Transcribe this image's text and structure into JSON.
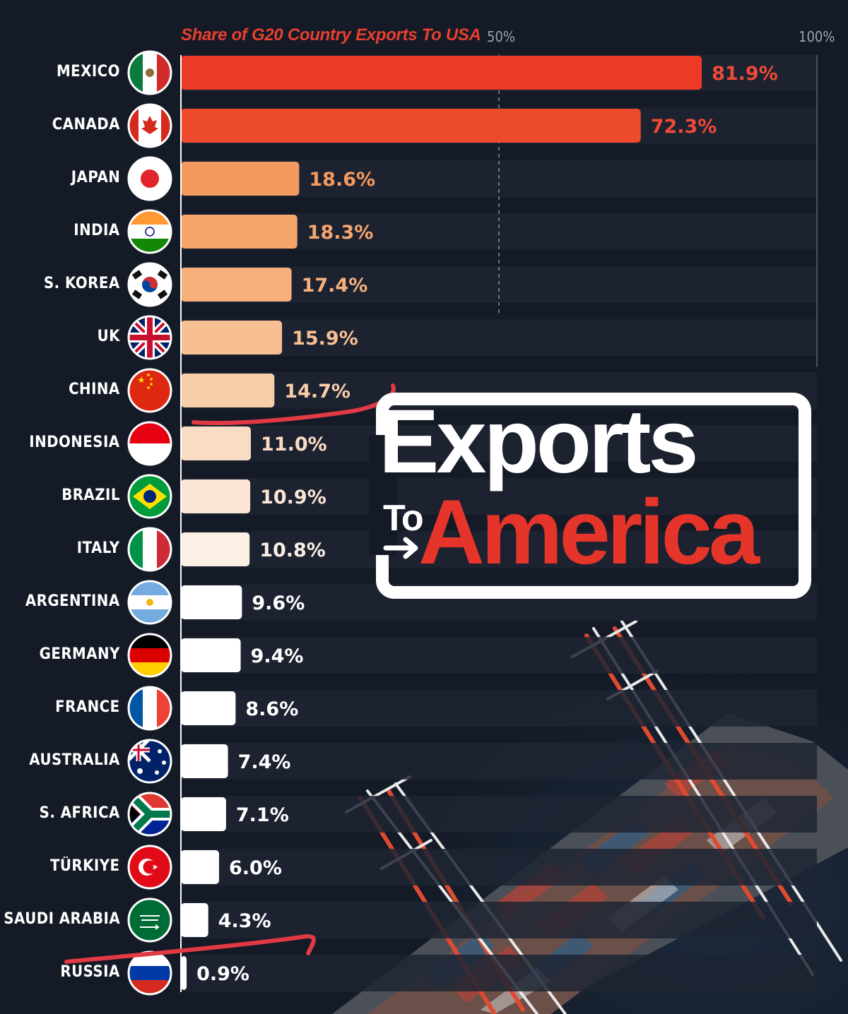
{
  "chart_data": {
    "type": "bar",
    "orientation": "horizontal",
    "title": "Share of G20 Country Exports To USA",
    "x_ticks": [
      "50%",
      "100%"
    ],
    "xlim": [
      0,
      100
    ],
    "categories": [
      "MEXICO",
      "CANADA",
      "JAPAN",
      "INDIA",
      "S. KOREA",
      "UK",
      "CHINA",
      "INDONESIA",
      "BRAZIL",
      "ITALY",
      "ARGENTINA",
      "GERMANY",
      "FRANCE",
      "AUSTRALIA",
      "S. AFRICA",
      "TÜRKIYE",
      "SAUDI ARABIA",
      "RUSSIA"
    ],
    "values": [
      81.9,
      72.3,
      18.6,
      18.3,
      17.4,
      15.9,
      14.7,
      11.0,
      10.9,
      10.8,
      9.6,
      9.4,
      8.6,
      7.4,
      7.1,
      6.0,
      4.3,
      0.9
    ],
    "value_labels": [
      "81.9%",
      "72.3%",
      "18.6%",
      "18.3%",
      "17.4%",
      "15.9%",
      "14.7%",
      "11.0%",
      "10.9%",
      "10.8%",
      "9.6%",
      "9.4%",
      "8.6%",
      "7.4%",
      "7.1%",
      "6.0%",
      "4.3%",
      "0.9%"
    ],
    "flags": [
      "mexico-flag",
      "canada-flag",
      "japan-flag",
      "india-flag",
      "south-korea-flag",
      "uk-flag",
      "china-flag",
      "indonesia-flag",
      "brazil-flag",
      "italy-flag",
      "argentina-flag",
      "germany-flag",
      "france-flag",
      "australia-flag",
      "south-africa-flag",
      "turkiye-flag",
      "saudi-arabia-flag",
      "russia-flag"
    ],
    "bar_colors": [
      "#ed3a26",
      "#ee4a2c",
      "#f59a5e",
      "#f6a56d",
      "#f7b07c",
      "#f8bf92",
      "#f8ceaa",
      "#fadcc4",
      "#fbe6d6",
      "#fcefe4",
      "#ffffff",
      "#ffffff",
      "#ffffff",
      "#ffffff",
      "#ffffff",
      "#ffffff",
      "#ffffff",
      "#ffffff"
    ],
    "label_colors": [
      "#f04a36",
      "#f04a36",
      "#f59a5e",
      "#f6a56d",
      "#f7b07c",
      "#f8bf92",
      "#f8ceaa",
      "#fadcc4",
      "#fbe6d6",
      "#fcefe4",
      "#ffffff",
      "#ffffff",
      "#ffffff",
      "#ffffff",
      "#ffffff",
      "#ffffff",
      "#ffffff",
      "#ffffff"
    ],
    "grid": "dashed line at 50%"
  },
  "logo": {
    "line1": "Exports",
    "line2a": "To",
    "line2b": "America"
  },
  "colors": {
    "background": "#141a26",
    "accent": "#e5352b",
    "title": "#e8402d",
    "annotation_stroke": "#e23a44"
  },
  "annotations": [
    "red hand-drawn underline beneath CHINA",
    "red hand-drawn line between SAUDI ARABIA and RUSSIA"
  ],
  "background_image": "port-with-container-ship-and-cranes"
}
